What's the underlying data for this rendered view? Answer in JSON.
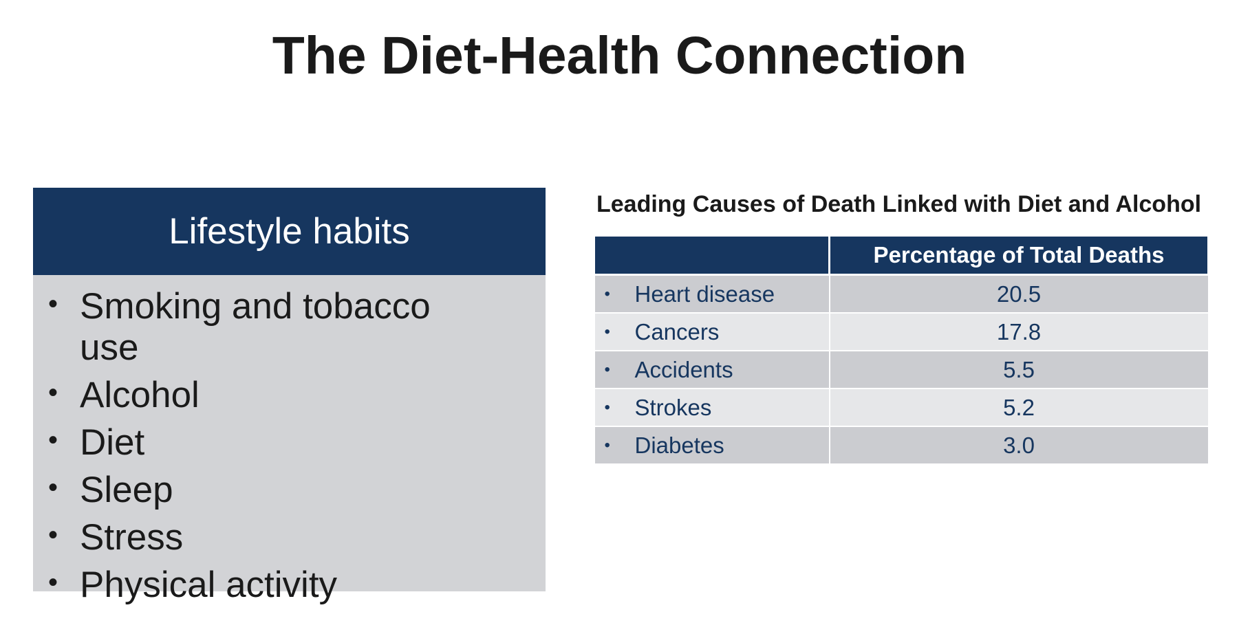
{
  "title": "The Diet-Health Connection",
  "lifestyle": {
    "header": "Lifestyle habits",
    "bullet": "•",
    "items": [
      "Smoking and tobacco use",
      "Alcohol",
      "Diet",
      "Sleep",
      "Stress",
      "Physical activity"
    ]
  },
  "table": {
    "title": "Leading Causes of Death Linked with Diet and Alcohol",
    "header_blank": "",
    "header_value": "Percentage of Total Deaths",
    "bullet": "•",
    "rows": [
      {
        "cause": "Heart disease",
        "value": "20.5"
      },
      {
        "cause": "Cancers",
        "value": "17.8"
      },
      {
        "cause": "Accidents",
        "value": "5.5"
      },
      {
        "cause": "Strokes",
        "value": "5.2"
      },
      {
        "cause": "Diabetes",
        "value": "3.0"
      }
    ]
  },
  "colors": {
    "navy": "#16365f",
    "box_gray": "#d2d3d6",
    "row_dark": "#cbccd0",
    "row_light": "#e6e7e9"
  }
}
